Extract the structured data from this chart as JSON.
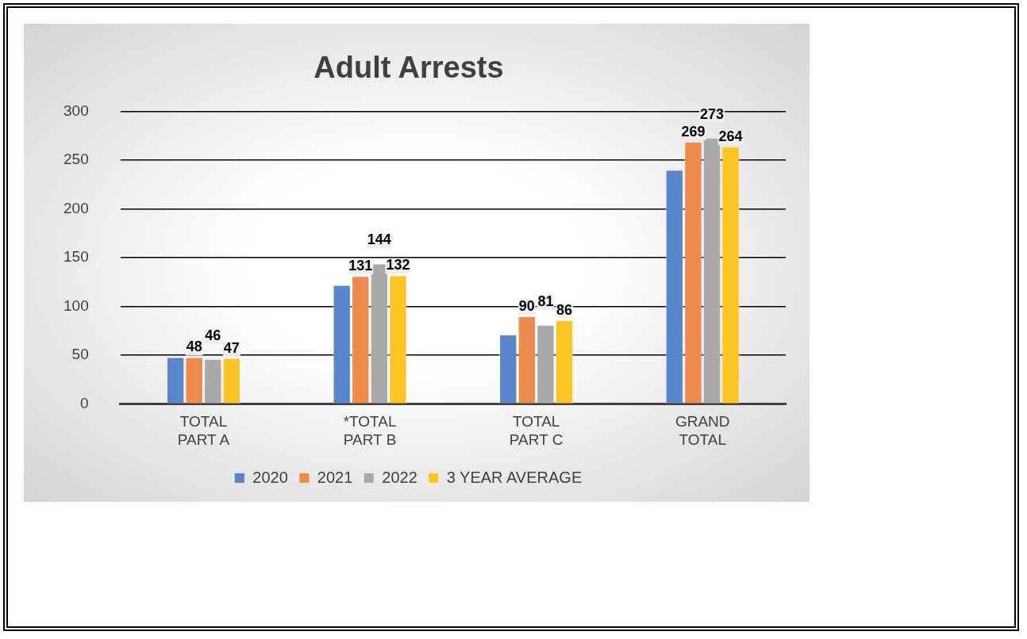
{
  "chart_data": {
    "type": "bar",
    "title": "Adult Arrests",
    "categories": [
      "TOTAL PART A",
      "*TOTAL PART B",
      "TOTAL PART C",
      "GRAND TOTAL"
    ],
    "series": [
      {
        "name": "2020",
        "color": "#5b86cc",
        "values": [
          48,
          122,
          71,
          240
        ],
        "value_labels": [
          null,
          null,
          null,
          null
        ]
      },
      {
        "name": "2021",
        "color": "#ee8c4e",
        "values": [
          48,
          131,
          90,
          269
        ],
        "value_labels": [
          "48",
          "131",
          "90",
          "269"
        ]
      },
      {
        "name": "2022",
        "color": "#a9a9a9",
        "values": [
          46,
          144,
          81,
          273
        ],
        "value_labels": [
          "46",
          "144",
          "81",
          "273"
        ]
      },
      {
        "name": "3 YEAR AVERAGE",
        "color": "#fdc425",
        "values": [
          47,
          132,
          86,
          264
        ],
        "value_labels": [
          "47",
          "132",
          "86",
          "264"
        ]
      }
    ],
    "ylim": [
      0,
      300
    ],
    "yticks": [
      0,
      50,
      100,
      150,
      200,
      250,
      300
    ],
    "grid": "y",
    "legend": "bottom"
  }
}
